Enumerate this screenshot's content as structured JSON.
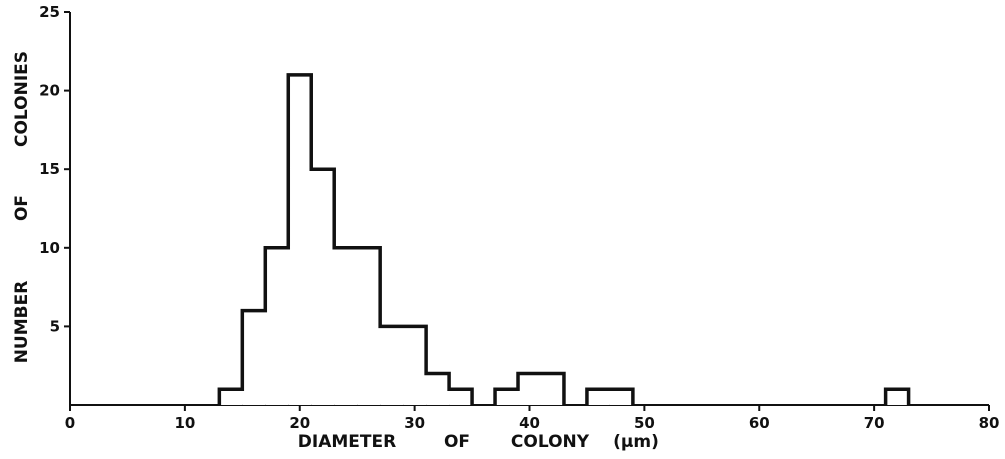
{
  "chart_data": {
    "type": "bar",
    "title": "",
    "xlabel_words": [
      "DIAMETER",
      "OF",
      "COLONY",
      "(μm)"
    ],
    "ylabel_words": [
      "NUMBER",
      "OF",
      "COLONIES"
    ],
    "xlim": [
      0,
      80
    ],
    "ylim": [
      0,
      25
    ],
    "x_ticks": [
      0,
      10,
      20,
      30,
      40,
      50,
      60,
      70,
      80
    ],
    "y_ticks": [
      5,
      10,
      15,
      20,
      25
    ],
    "grid": false,
    "line_color": "#111111",
    "bins": [
      {
        "x0": 13,
        "x1": 15,
        "count": 1
      },
      {
        "x0": 15,
        "x1": 17,
        "count": 6
      },
      {
        "x0": 17,
        "x1": 19,
        "count": 10
      },
      {
        "x0": 19,
        "x1": 21,
        "count": 21
      },
      {
        "x0": 21,
        "x1": 23,
        "count": 15
      },
      {
        "x0": 23,
        "x1": 25,
        "count": 10
      },
      {
        "x0": 25,
        "x1": 27,
        "count": 10
      },
      {
        "x0": 27,
        "x1": 29,
        "count": 5
      },
      {
        "x0": 29,
        "x1": 31,
        "count": 5
      },
      {
        "x0": 31,
        "x1": 33,
        "count": 2
      },
      {
        "x0": 33,
        "x1": 35,
        "count": 1
      },
      {
        "x0": 37,
        "x1": 39,
        "count": 1
      },
      {
        "x0": 39,
        "x1": 41,
        "count": 2
      },
      {
        "x0": 41,
        "x1": 43,
        "count": 2
      },
      {
        "x0": 45,
        "x1": 47,
        "count": 1
      },
      {
        "x0": 47,
        "x1": 49,
        "count": 1
      },
      {
        "x0": 71,
        "x1": 73,
        "count": 1
      }
    ]
  }
}
